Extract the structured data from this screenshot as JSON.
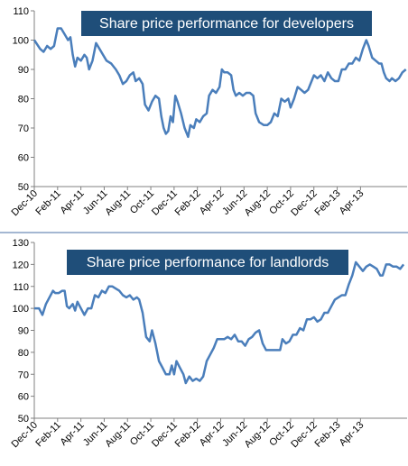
{
  "chart_data": [
    {
      "type": "line",
      "title": "Share price performance for developers",
      "ylim": [
        50,
        110
      ],
      "yticks": [
        50,
        60,
        70,
        80,
        90,
        100,
        110
      ],
      "xticks": [
        "Dec-10",
        "Feb-11",
        "Apr-11",
        "Jun-11",
        "Aug-11",
        "Oct-11",
        "Dec-11",
        "Feb-12",
        "Apr-12",
        "Jun-12",
        "Aug-12",
        "Oct-12",
        "Dec-12",
        "Feb-13",
        "Apr-13"
      ],
      "xlabel": "",
      "ylabel": "",
      "grid": false,
      "colors": {
        "line": "#4a7ebb",
        "title_bg": "#1f4e79"
      },
      "series": [
        {
          "values": [
            [
              0,
              100
            ],
            [
              0.5,
              97
            ],
            [
              0.8,
              96
            ],
            [
              1.1,
              98
            ],
            [
              1.4,
              97
            ],
            [
              1.7,
              98
            ],
            [
              2.0,
              104
            ],
            [
              2.3,
              104
            ],
            [
              2.6,
              102
            ],
            [
              2.9,
              100
            ],
            [
              3.1,
              101
            ],
            [
              3.3,
              95
            ],
            [
              3.5,
              91
            ],
            [
              3.7,
              94
            ],
            [
              4.0,
              93
            ],
            [
              4.3,
              95
            ],
            [
              4.5,
              94
            ],
            [
              4.7,
              90
            ],
            [
              5.0,
              93
            ],
            [
              5.3,
              99
            ],
            [
              5.6,
              97
            ],
            [
              5.9,
              95
            ],
            [
              6.2,
              93
            ],
            [
              6.6,
              92
            ],
            [
              7.0,
              90
            ],
            [
              7.3,
              88
            ],
            [
              7.6,
              85
            ],
            [
              7.9,
              86
            ],
            [
              8.2,
              88
            ],
            [
              8.5,
              89
            ],
            [
              8.7,
              86
            ],
            [
              9.0,
              87
            ],
            [
              9.3,
              85
            ],
            [
              9.5,
              78
            ],
            [
              9.8,
              76
            ],
            [
              10.1,
              79
            ],
            [
              10.4,
              81
            ],
            [
              10.7,
              80
            ],
            [
              10.9,
              74
            ],
            [
              11.1,
              70
            ],
            [
              11.3,
              68
            ],
            [
              11.5,
              69
            ],
            [
              11.7,
              74
            ],
            [
              11.9,
              72
            ],
            [
              12.1,
              81
            ],
            [
              12.3,
              79
            ],
            [
              12.6,
              75
            ],
            [
              12.9,
              70
            ],
            [
              13.2,
              67
            ],
            [
              13.4,
              71
            ],
            [
              13.7,
              70
            ],
            [
              13.9,
              73
            ],
            [
              14.2,
              72
            ],
            [
              14.5,
              74
            ],
            [
              14.8,
              75
            ],
            [
              15.0,
              81
            ],
            [
              15.3,
              83
            ],
            [
              15.6,
              82
            ],
            [
              15.9,
              84
            ],
            [
              16.1,
              90
            ],
            [
              16.3,
              89
            ],
            [
              16.6,
              89
            ],
            [
              16.9,
              88
            ],
            [
              17.1,
              83
            ],
            [
              17.3,
              81
            ],
            [
              17.6,
              82
            ],
            [
              17.9,
              81
            ],
            [
              18.2,
              82
            ],
            [
              18.5,
              82
            ],
            [
              18.8,
              81
            ],
            [
              19.0,
              75
            ],
            [
              19.3,
              72
            ],
            [
              19.7,
              71
            ],
            [
              20.0,
              71
            ],
            [
              20.3,
              72
            ],
            [
              20.6,
              75
            ],
            [
              20.9,
              74
            ],
            [
              21.2,
              80
            ],
            [
              21.5,
              79
            ],
            [
              21.8,
              80
            ],
            [
              22.0,
              77
            ],
            [
              22.3,
              80
            ],
            [
              22.6,
              84
            ],
            [
              22.9,
              83
            ],
            [
              23.2,
              82
            ],
            [
              23.5,
              83
            ],
            [
              23.8,
              86
            ],
            [
              24.0,
              88
            ],
            [
              24.3,
              87
            ],
            [
              24.6,
              88
            ],
            [
              24.9,
              86
            ],
            [
              25.2,
              89
            ],
            [
              25.5,
              87
            ],
            [
              25.8,
              86
            ],
            [
              26.1,
              86
            ],
            [
              26.4,
              90
            ],
            [
              26.7,
              90
            ],
            [
              27.0,
              92
            ],
            [
              27.3,
              92
            ],
            [
              27.6,
              94
            ],
            [
              27.9,
              93
            ],
            [
              28.2,
              97
            ],
            [
              28.5,
              100
            ],
            [
              28.7,
              98
            ],
            [
              29.0,
              94
            ],
            [
              29.3,
              93
            ],
            [
              29.6,
              92
            ],
            [
              29.8,
              92
            ],
            [
              30.0,
              89
            ],
            [
              30.2,
              87
            ],
            [
              30.5,
              86
            ],
            [
              30.7,
              87
            ],
            [
              31.0,
              86
            ],
            [
              31.3,
              87
            ],
            [
              31.6,
              89
            ],
            [
              31.9,
              90
            ]
          ]
        }
      ]
    },
    {
      "type": "line",
      "title": "Share price performance for landlords",
      "ylim": [
        50,
        130
      ],
      "yticks": [
        50,
        60,
        70,
        80,
        90,
        100,
        110,
        120,
        130
      ],
      "xticks": [
        "Dec-10",
        "Feb-11",
        "Apr-11",
        "Jun-11",
        "Aug-11",
        "Oct-11",
        "Dec-11",
        "Feb-12",
        "Apr-12",
        "Jun-12",
        "Aug-12",
        "Oct-12",
        "Dec-12",
        "Feb-13",
        "Apr-13"
      ],
      "xlabel": "",
      "ylabel": "",
      "grid": false,
      "colors": {
        "line": "#4a7ebb",
        "title_bg": "#1f4e79"
      },
      "series": [
        {
          "values": [
            [
              0,
              100
            ],
            [
              0.4,
              100
            ],
            [
              0.7,
              97
            ],
            [
              1.0,
              102
            ],
            [
              1.3,
              105
            ],
            [
              1.6,
              108
            ],
            [
              1.8,
              107
            ],
            [
              2.1,
              107
            ],
            [
              2.4,
              108
            ],
            [
              2.6,
              108
            ],
            [
              2.8,
              101
            ],
            [
              3.0,
              100
            ],
            [
              3.3,
              102
            ],
            [
              3.5,
              99
            ],
            [
              3.7,
              103
            ],
            [
              4.0,
              100
            ],
            [
              4.3,
              97
            ],
            [
              4.6,
              100
            ],
            [
              4.9,
              100
            ],
            [
              5.2,
              106
            ],
            [
              5.5,
              105
            ],
            [
              5.8,
              108
            ],
            [
              6.1,
              107
            ],
            [
              6.4,
              110
            ],
            [
              6.7,
              110
            ],
            [
              7.0,
              109
            ],
            [
              7.3,
              108
            ],
            [
              7.6,
              106
            ],
            [
              7.9,
              105
            ],
            [
              8.2,
              106
            ],
            [
              8.5,
              104
            ],
            [
              8.8,
              105
            ],
            [
              9.0,
              104
            ],
            [
              9.3,
              98
            ],
            [
              9.6,
              87
            ],
            [
              9.9,
              85
            ],
            [
              10.1,
              90
            ],
            [
              10.4,
              84
            ],
            [
              10.7,
              76
            ],
            [
              11.0,
              73
            ],
            [
              11.3,
              70
            ],
            [
              11.6,
              70
            ],
            [
              11.8,
              74
            ],
            [
              12.0,
              70
            ],
            [
              12.2,
              76
            ],
            [
              12.5,
              73
            ],
            [
              12.8,
              70
            ],
            [
              13.0,
              66
            ],
            [
              13.3,
              69
            ],
            [
              13.6,
              67
            ],
            [
              13.9,
              68
            ],
            [
              14.2,
              67
            ],
            [
              14.5,
              69
            ],
            [
              14.8,
              76
            ],
            [
              15.1,
              79
            ],
            [
              15.4,
              82
            ],
            [
              15.7,
              86
            ],
            [
              16.0,
              86
            ],
            [
              16.3,
              86
            ],
            [
              16.6,
              87
            ],
            [
              16.9,
              86
            ],
            [
              17.2,
              88
            ],
            [
              17.5,
              85
            ],
            [
              17.8,
              85
            ],
            [
              18.1,
              83
            ],
            [
              18.4,
              86
            ],
            [
              18.7,
              87
            ],
            [
              19.0,
              89
            ],
            [
              19.3,
              90
            ],
            [
              19.6,
              84
            ],
            [
              19.9,
              81
            ],
            [
              20.2,
              81
            ],
            [
              20.5,
              81
            ],
            [
              20.8,
              81
            ],
            [
              21.1,
              81
            ],
            [
              21.3,
              86
            ],
            [
              21.6,
              84
            ],
            [
              21.9,
              85
            ],
            [
              22.2,
              88
            ],
            [
              22.5,
              88
            ],
            [
              22.8,
              91
            ],
            [
              23.1,
              90
            ],
            [
              23.4,
              95
            ],
            [
              23.7,
              95
            ],
            [
              24.0,
              96
            ],
            [
              24.3,
              94
            ],
            [
              24.6,
              95
            ],
            [
              24.9,
              98
            ],
            [
              25.2,
              98
            ],
            [
              25.5,
              101
            ],
            [
              25.8,
              104
            ],
            [
              26.1,
              105
            ],
            [
              26.4,
              106
            ],
            [
              26.7,
              106
            ],
            [
              27.0,
              111
            ],
            [
              27.3,
              115
            ],
            [
              27.6,
              121
            ],
            [
              27.9,
              119
            ],
            [
              28.2,
              117
            ],
            [
              28.5,
              119
            ],
            [
              28.8,
              120
            ],
            [
              29.1,
              119
            ],
            [
              29.4,
              118
            ],
            [
              29.7,
              115
            ],
            [
              29.9,
              115
            ],
            [
              30.2,
              120
            ],
            [
              30.5,
              120
            ],
            [
              30.8,
              119
            ],
            [
              31.1,
              119
            ],
            [
              31.4,
              118
            ],
            [
              31.7,
              120
            ]
          ]
        }
      ]
    }
  ]
}
